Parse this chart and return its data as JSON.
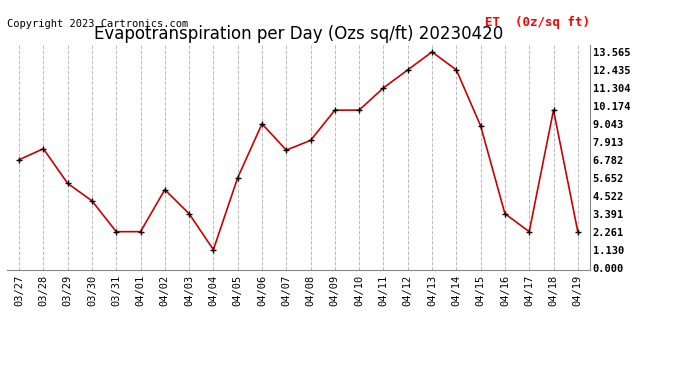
{
  "title": "Evapotranspiration per Day (Ozs sq/ft) 20230420",
  "copyright": "Copyright 2023 Cartronics.com",
  "legend_label": "ET  (0z/sq ft)",
  "dates": [
    "03/27",
    "03/28",
    "03/29",
    "03/30",
    "03/31",
    "04/01",
    "04/02",
    "04/03",
    "04/04",
    "04/05",
    "04/06",
    "04/07",
    "04/08",
    "04/09",
    "04/10",
    "04/11",
    "04/12",
    "04/13",
    "04/14",
    "04/15",
    "04/16",
    "04/17",
    "04/18",
    "04/19"
  ],
  "values": [
    6.782,
    7.478,
    5.3,
    4.2,
    2.261,
    2.261,
    4.9,
    3.391,
    1.13,
    5.652,
    9.043,
    7.391,
    8.0,
    9.904,
    9.904,
    11.304,
    12.435,
    13.565,
    12.435,
    8.913,
    3.391,
    2.261,
    9.904,
    2.261
  ],
  "yticks": [
    0.0,
    1.13,
    2.261,
    3.391,
    4.522,
    5.652,
    6.782,
    7.913,
    9.043,
    10.174,
    11.304,
    12.435,
    13.565
  ],
  "line_color": "#cc0000",
  "marker_color": "#000000",
  "grid_color": "#bbbbbb",
  "bg_color": "#ffffff",
  "title_fontsize": 12,
  "copyright_fontsize": 7.5,
  "tick_fontsize": 7.5,
  "legend_fontsize": 9,
  "ylim": [
    -0.15,
    14.0
  ],
  "line_width": 1.2,
  "marker_size": 5
}
